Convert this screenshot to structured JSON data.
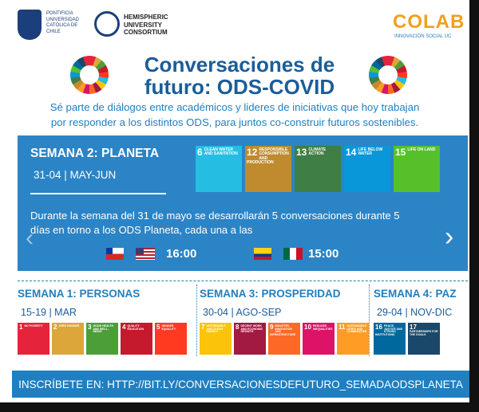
{
  "logos": {
    "puc": "PONTIFICIA UNIVERSIDAD CATÓLICA DE CHILE",
    "huc": "HEMISPHERIC UNIVERSITY CONSORTIUM",
    "colab": "COLAB",
    "colab_tagline": "INNOVACIÓN SOCIAL UC"
  },
  "title": [
    "Conversaciones de",
    "futuro: ODS-COVID"
  ],
  "subtitle": [
    "Sé parte de diálogos entre académicos y lideres de iniciativas que hoy trabajan",
    "por responder a los distintos  ODS, para juntos co-construir futuros sostenibles."
  ],
  "featured": {
    "title": "SEMANA 2: PLANETA",
    "dates": "31-04 | MAY-JUN",
    "goals": [
      {
        "number": 6,
        "label": "CLEAN WATER AND SANITATION",
        "color": "#26bde2"
      },
      {
        "number": 12,
        "label": "RESPONSIBLE CONSUMPTION AND PRODUCTION",
        "color": "#bf8b2e"
      },
      {
        "number": 13,
        "label": "CLIMATE ACTION",
        "color": "#3f7e44"
      },
      {
        "number": 14,
        "label": "LIFE BELOW WATER",
        "color": "#0a97d9"
      },
      {
        "number": 15,
        "label": "LIFE ON LAND",
        "color": "#56c02b"
      }
    ],
    "description": [
      "Durante la semana del 31 de mayo se desarrollarán 5 conversaciones durante 5",
      "días en torno a los ODS Planeta, cada una a las"
    ],
    "times": [
      "16:00",
      "15:00"
    ]
  },
  "weeks": [
    {
      "title": "SEMANA 1: PERSONAS",
      "dates": "15-19 | MAR",
      "goals": [
        {
          "number": 1,
          "label": "NO POVERTY",
          "color": "#e5243b"
        },
        {
          "number": 2,
          "label": "ZERO HUNGER",
          "color": "#dda63a"
        },
        {
          "number": 3,
          "label": "GOOD HEALTH AND WELL-BEING",
          "color": "#4c9f38"
        },
        {
          "number": 4,
          "label": "QUALITY EDUCATION",
          "color": "#c5192d"
        },
        {
          "number": 5,
          "label": "GENDER EQUALITY",
          "color": "#ff3a21"
        }
      ]
    },
    {
      "title": "SEMANA 3: PROSPERIDAD",
      "dates": "30-04 | AGO-SEP",
      "goals": [
        {
          "number": 7,
          "label": "AFFORDABLE AND CLEAN ENERGY",
          "color": "#fcc30b"
        },
        {
          "number": 8,
          "label": "DECENT WORK AND ECONOMIC GROWTH",
          "color": "#a21942"
        },
        {
          "number": 9,
          "label": "INDUSTRY, INNOVATION AND INFRASTRUCTURE",
          "color": "#fd6925"
        },
        {
          "number": 10,
          "label": "REDUCED INEQUALITIES",
          "color": "#dd1367"
        },
        {
          "number": 11,
          "label": "SUSTAINABLE CITIES AND COMMUNITIES",
          "color": "#fd9d24"
        }
      ]
    },
    {
      "title": "SEMANA 4: PAZ",
      "dates": "29-04 | NOV-DIC",
      "goals": [
        {
          "number": 16,
          "label": "PEACE, JUSTICE AND STRONG INSTITUTIONS",
          "color": "#00689d"
        },
        {
          "number": 17,
          "label": "PARTNERSHIPS FOR THE GOALS",
          "color": "#19486a"
        }
      ]
    }
  ],
  "footer": "INSCRÍBETE EN:  HTTP://BIT.LY/CONVERSACIONESDEFUTURO_SEMADAODSPLANETA"
}
